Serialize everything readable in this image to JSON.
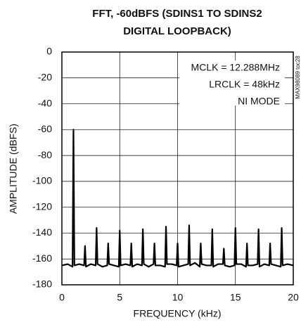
{
  "chart_data": {
    "type": "line",
    "title_lines": [
      "FFT, -60dBFS (SDINS1 TO SDINS2",
      "DIGITAL LOOPBACK)"
    ],
    "xlabel": "FREQUENCY (kHz)",
    "ylabel": "AMPLITUDE (dBFS)",
    "annotations": [
      "MCLK = 12.288MHz",
      "LRCLK = 48kHz",
      "NI MODE"
    ],
    "side_label": "MAX98089 toc28",
    "color": "#000000",
    "grid": true,
    "xlim": [
      0,
      20
    ],
    "xticks": [
      0,
      5,
      10,
      15,
      20
    ],
    "ylim": [
      -180,
      0
    ],
    "yticks": [
      0,
      -20,
      -40,
      -60,
      -80,
      -100,
      -120,
      -140,
      -160,
      -180
    ],
    "x": [
      0,
      0.5,
      0.92,
      1,
      1.08,
      1.5,
      1.92,
      2,
      2.08,
      2.5,
      2.92,
      3,
      3.08,
      3.5,
      3.92,
      4,
      4.08,
      4.5,
      4.92,
      5,
      5.08,
      5.5,
      5.92,
      6,
      6.08,
      6.5,
      6.92,
      7,
      7.08,
      7.5,
      7.92,
      8,
      8.08,
      8.5,
      8.92,
      9,
      9.08,
      9.5,
      9.92,
      10,
      10.08,
      10.5,
      10.92,
      11,
      11.08,
      11.5,
      11.92,
      12,
      12.08,
      12.5,
      12.92,
      13,
      13.08,
      13.5,
      13.92,
      14,
      14.08,
      14.5,
      14.92,
      15,
      15.08,
      15.5,
      15.92,
      16,
      16.08,
      16.5,
      16.92,
      17,
      17.08,
      17.5,
      17.92,
      18,
      18.08,
      18.5,
      18.92,
      19,
      19.08,
      19.5,
      20
    ],
    "values": [
      -165,
      -164,
      -166,
      -60,
      -165,
      -164,
      -165,
      -150,
      -166,
      -164,
      -165,
      -136,
      -164,
      -166,
      -165,
      -148,
      -164,
      -165,
      -166,
      -138,
      -165,
      -164,
      -165,
      -148,
      -166,
      -164,
      -165,
      -137,
      -164,
      -166,
      -164,
      -148,
      -165,
      -165,
      -166,
      -135,
      -164,
      -164,
      -165,
      -148,
      -166,
      -165,
      -164,
      -134,
      -165,
      -163,
      -166,
      -148,
      -164,
      -165,
      -165,
      -137,
      -166,
      -164,
      -164,
      -152,
      -165,
      -166,
      -165,
      -136,
      -164,
      -164,
      -166,
      -148,
      -165,
      -165,
      -164,
      -137,
      -166,
      -164,
      -165,
      -148,
      -164,
      -165,
      -166,
      -136,
      -165,
      -164,
      -165
    ]
  }
}
